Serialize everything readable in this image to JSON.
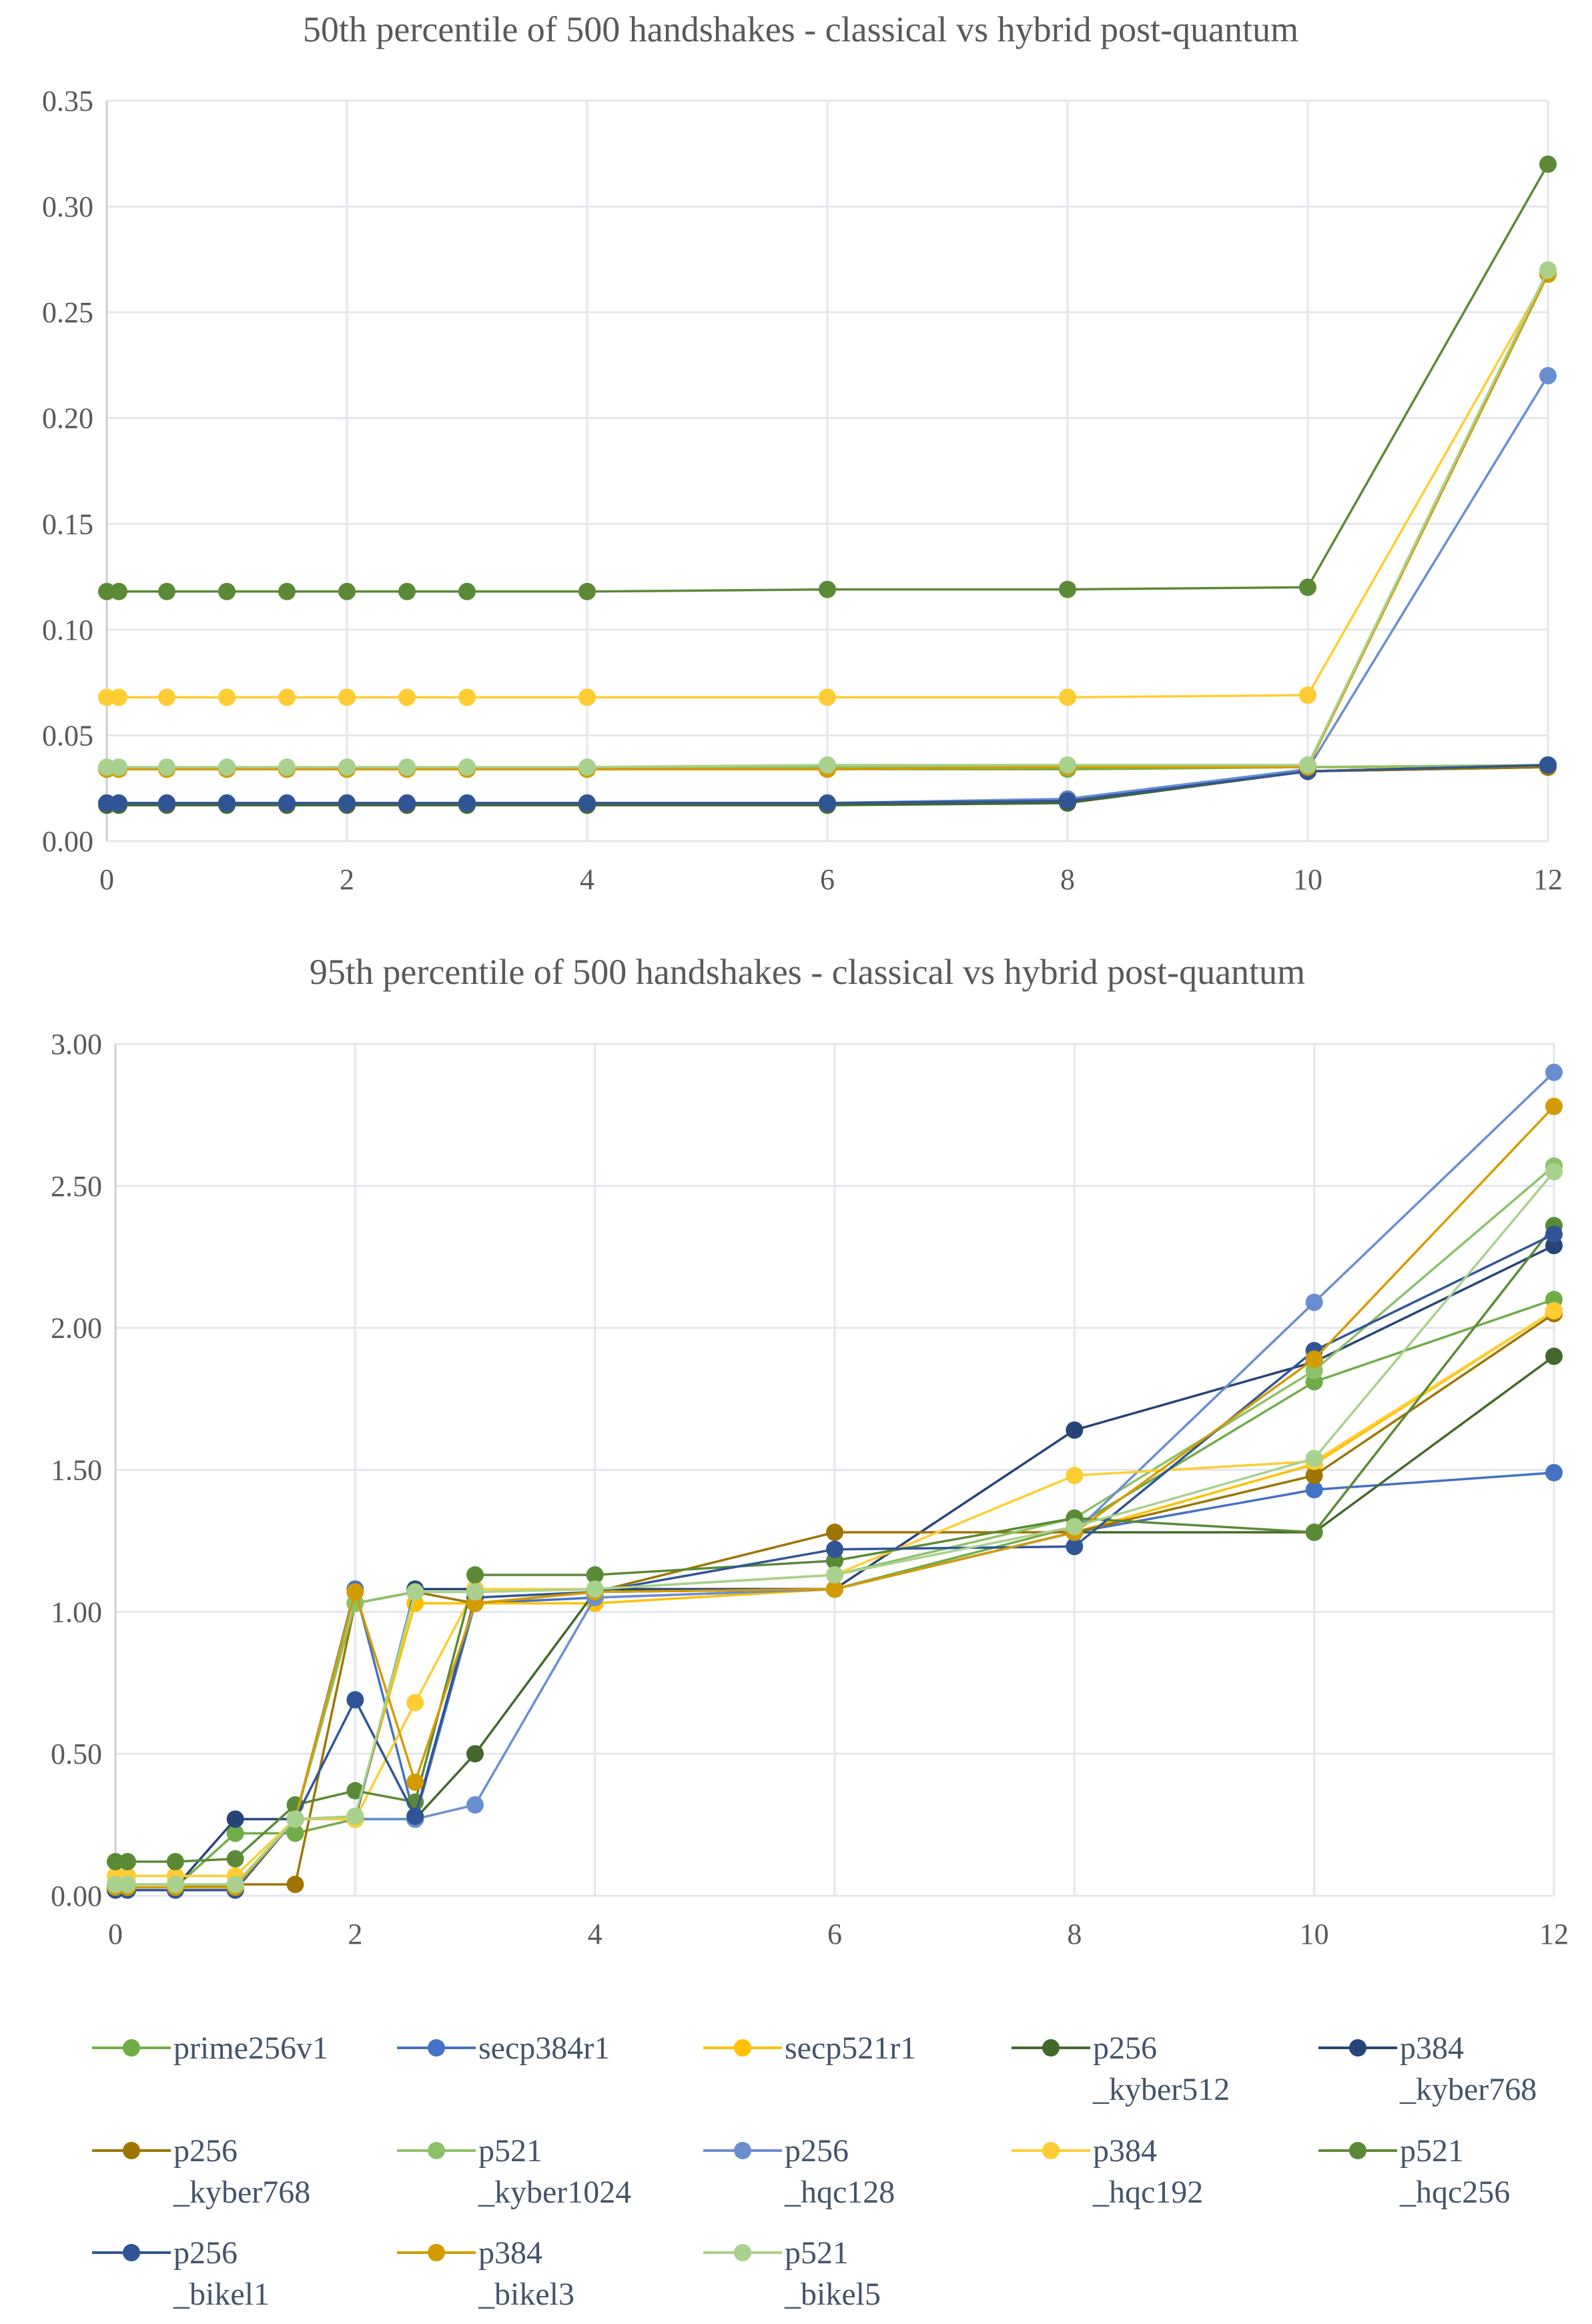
{
  "chart_data": [
    {
      "type": "line",
      "title": "50th percentile of 500 handshakes - classical vs hybrid post-quantum",
      "xlabel": "",
      "ylabel": "",
      "x": [
        0,
        0.1,
        0.5,
        1,
        1.5,
        2,
        2.5,
        3,
        4,
        6,
        8,
        10,
        12
      ],
      "xlim": [
        0,
        12
      ],
      "xticks": [
        0,
        2,
        4,
        6,
        8,
        10,
        12
      ],
      "ylim": [
        0,
        0.35
      ],
      "yticks": [
        0,
        0.05,
        0.1,
        0.15,
        0.2,
        0.25,
        0.3,
        0.35
      ],
      "ytick_decimals": 2,
      "grid": true,
      "series": [
        {
          "name": "prime256v1",
          "values": [
            0.034,
            0.034,
            0.034,
            0.034,
            0.034,
            0.034,
            0.034,
            0.034,
            0.034,
            0.034,
            0.034,
            0.035,
            0.035
          ]
        },
        {
          "name": "secp384r1",
          "values": [
            0.018,
            0.018,
            0.018,
            0.018,
            0.018,
            0.018,
            0.018,
            0.018,
            0.018,
            0.018,
            0.019,
            0.033,
            0.036
          ]
        },
        {
          "name": "secp521r1",
          "values": [
            0.034,
            0.034,
            0.034,
            0.034,
            0.034,
            0.034,
            0.034,
            0.034,
            0.034,
            0.034,
            0.035,
            0.035,
            0.035
          ]
        },
        {
          "name": "p256_kyber512",
          "values": [
            0.017,
            0.017,
            0.017,
            0.017,
            0.017,
            0.017,
            0.017,
            0.017,
            0.017,
            0.017,
            0.018,
            0.033,
            0.035
          ]
        },
        {
          "name": "p384_kyber768",
          "values": [
            0.018,
            0.018,
            0.018,
            0.018,
            0.018,
            0.018,
            0.018,
            0.018,
            0.018,
            0.018,
            0.019,
            0.033,
            0.036
          ]
        },
        {
          "name": "p256_kyber768",
          "values": [
            0.018,
            0.018,
            0.018,
            0.018,
            0.018,
            0.018,
            0.018,
            0.018,
            0.018,
            0.018,
            0.019,
            0.033,
            0.035
          ]
        },
        {
          "name": "p521_kyber1024",
          "values": [
            0.034,
            0.034,
            0.034,
            0.034,
            0.034,
            0.034,
            0.034,
            0.034,
            0.034,
            0.035,
            0.035,
            0.035,
            0.036
          ]
        },
        {
          "name": "p256_hqc128",
          "values": [
            0.018,
            0.018,
            0.018,
            0.018,
            0.018,
            0.018,
            0.018,
            0.018,
            0.018,
            0.018,
            0.02,
            0.034,
            0.22
          ]
        },
        {
          "name": "p384_hqc192",
          "values": [
            0.068,
            0.068,
            0.068,
            0.068,
            0.068,
            0.068,
            0.068,
            0.068,
            0.068,
            0.068,
            0.068,
            0.069,
            0.268
          ]
        },
        {
          "name": "p521_hqc256",
          "values": [
            0.118,
            0.118,
            0.118,
            0.118,
            0.118,
            0.118,
            0.118,
            0.118,
            0.118,
            0.119,
            0.119,
            0.12,
            0.32
          ]
        },
        {
          "name": "p256_bikel1",
          "values": [
            0.018,
            0.018,
            0.018,
            0.018,
            0.018,
            0.018,
            0.018,
            0.018,
            0.018,
            0.018,
            0.019,
            0.033,
            0.036
          ]
        },
        {
          "name": "p384_bikel3",
          "values": [
            0.034,
            0.034,
            0.034,
            0.034,
            0.034,
            0.034,
            0.034,
            0.034,
            0.034,
            0.034,
            0.035,
            0.035,
            0.268
          ]
        },
        {
          "name": "p521_bikel5",
          "values": [
            0.035,
            0.035,
            0.035,
            0.035,
            0.035,
            0.035,
            0.035,
            0.035,
            0.035,
            0.036,
            0.036,
            0.036,
            0.27
          ]
        }
      ]
    },
    {
      "type": "line",
      "title": "95th percentile of 500 handshakes - classical vs hybrid post-quantum",
      "xlabel": "",
      "ylabel": "",
      "x": [
        0,
        0.1,
        0.5,
        1,
        1.5,
        2,
        2.5,
        3,
        4,
        6,
        8,
        10,
        12
      ],
      "xlim": [
        0,
        12
      ],
      "xticks": [
        0,
        2,
        4,
        6,
        8,
        10,
        12
      ],
      "ylim": [
        0,
        3.0
      ],
      "yticks": [
        0,
        0.5,
        1.0,
        1.5,
        2.0,
        2.5,
        3.0
      ],
      "ytick_decimals": 2,
      "grid": true,
      "series": [
        {
          "name": "prime256v1",
          "values": [
            0.03,
            0.03,
            0.03,
            0.22,
            0.22,
            0.27,
            0.27,
            1.03,
            1.07,
            1.08,
            1.3,
            1.81,
            2.1
          ]
        },
        {
          "name": "secp384r1",
          "values": [
            0.02,
            0.02,
            0.02,
            0.02,
            0.27,
            1.08,
            0.27,
            1.03,
            1.05,
            1.08,
            1.28,
            1.43,
            1.49
          ]
        },
        {
          "name": "secp521r1",
          "values": [
            0.04,
            0.04,
            0.04,
            0.04,
            0.27,
            0.28,
            1.03,
            1.03,
            1.03,
            1.08,
            1.28,
            1.52,
            2.06
          ]
        },
        {
          "name": "p256_kyber512",
          "values": [
            0.03,
            0.03,
            0.03,
            0.03,
            0.27,
            0.27,
            0.27,
            0.5,
            1.07,
            1.08,
            1.28,
            1.28,
            1.9
          ]
        },
        {
          "name": "p384_kyber768",
          "values": [
            0.03,
            0.03,
            0.03,
            0.27,
            0.27,
            0.27,
            1.08,
            1.08,
            1.08,
            1.08,
            1.64,
            1.88,
            2.29
          ]
        },
        {
          "name": "p256_kyber768",
          "values": [
            0.03,
            0.03,
            0.03,
            0.04,
            0.04,
            1.03,
            1.07,
            1.03,
            1.07,
            1.28,
            1.28,
            1.48,
            2.05
          ]
        },
        {
          "name": "p521_kyber1024",
          "values": [
            0.04,
            0.04,
            0.04,
            0.04,
            0.27,
            1.03,
            1.07,
            1.07,
            1.08,
            1.13,
            1.33,
            1.85,
            2.57
          ]
        },
        {
          "name": "p256_hqc128",
          "values": [
            0.03,
            0.03,
            0.03,
            0.03,
            0.27,
            0.27,
            0.27,
            0.32,
            1.05,
            1.08,
            1.28,
            2.09,
            2.9
          ]
        },
        {
          "name": "p384_hqc192",
          "values": [
            0.07,
            0.07,
            0.07,
            0.07,
            0.27,
            0.27,
            0.68,
            1.08,
            1.08,
            1.13,
            1.48,
            1.53,
            2.06
          ]
        },
        {
          "name": "p521_hqc256",
          "values": [
            0.12,
            0.12,
            0.12,
            0.13,
            0.32,
            0.37,
            0.33,
            1.13,
            1.13,
            1.18,
            1.33,
            1.28,
            2.36
          ]
        },
        {
          "name": "p256_bikel1",
          "values": [
            0.02,
            0.02,
            0.02,
            0.02,
            0.27,
            0.69,
            0.28,
            1.05,
            1.07,
            1.22,
            1.23,
            1.92,
            2.33
          ]
        },
        {
          "name": "p384_bikel3",
          "values": [
            0.03,
            0.03,
            0.03,
            0.03,
            0.27,
            1.07,
            0.4,
            1.03,
            1.07,
            1.08,
            1.28,
            1.89,
            2.78
          ]
        },
        {
          "name": "p521_bikel5",
          "values": [
            0.04,
            0.04,
            0.04,
            0.04,
            0.27,
            0.28,
            1.07,
            1.07,
            1.08,
            1.13,
            1.3,
            1.54,
            2.55
          ]
        }
      ]
    }
  ],
  "legend": {
    "placement": "bottom",
    "items": [
      "prime256v1",
      "secp384r1",
      "secp521r1",
      "p256_kyber512",
      "p384_kyber768",
      "p256_kyber768",
      "p521_kyber1024",
      "p256_hqc128",
      "p384_hqc192",
      "p521_hqc256",
      "p256_bikel1",
      "p384_bikel3",
      "p521_bikel5"
    ]
  },
  "colors": {
    "prime256v1": "#70AD47",
    "secp384r1": "#4472C4",
    "secp521r1": "#FFC000",
    "p256_kyber512": "#43682B",
    "p384_kyber768": "#264478",
    "p256_kyber768": "#9E7500",
    "p521_kyber1024": "#8CC168",
    "p256_hqc128": "#698ED0",
    "p384_hqc192": "#FFCD33",
    "p521_hqc256": "#5A8A36",
    "p256_bikel1": "#2F5597",
    "p384_bikel3": "#D49B00",
    "p521_bikel5": "#A9D18E"
  }
}
